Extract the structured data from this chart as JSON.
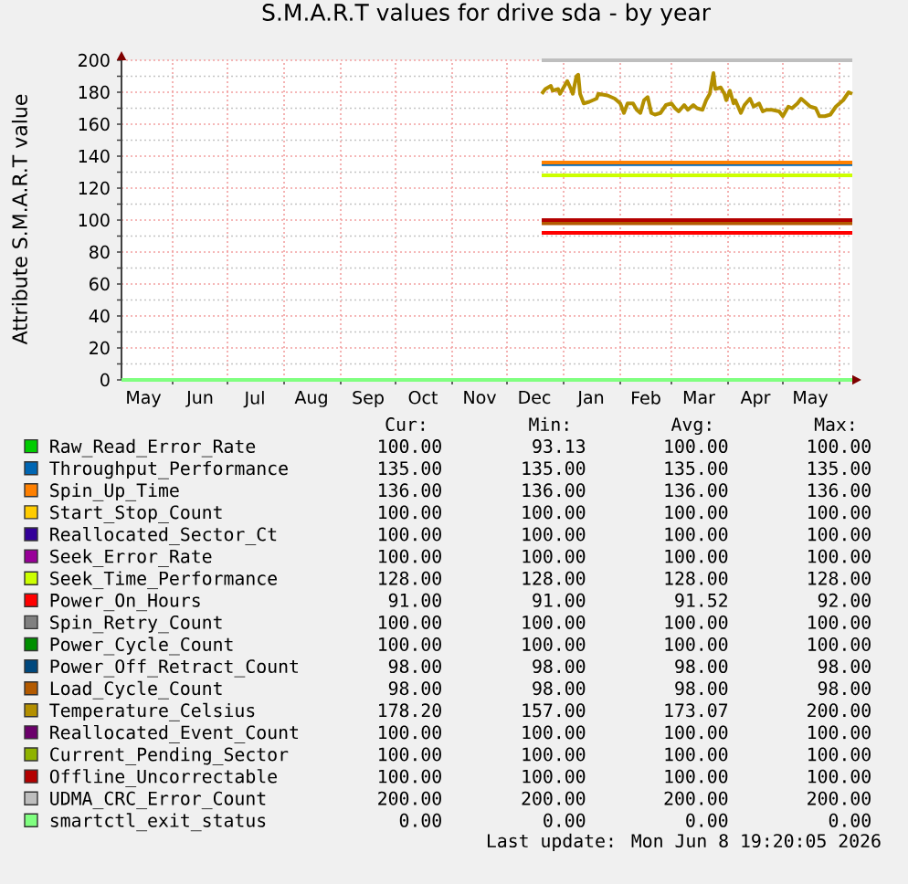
{
  "chart_data": {
    "type": "line",
    "title": "S.M.A.R.T values for drive sda - by year",
    "ylabel": "Attribute S.M.A.R.T value",
    "xlim": [
      "2025-05-04",
      "2026-06-08"
    ],
    "xticks": [
      {
        "value": "2025-05-16",
        "label": "May"
      },
      {
        "value": "2025-06-01",
        "label": null
      },
      {
        "value": "2025-06-16",
        "label": "Jun"
      },
      {
        "value": "2025-07-01",
        "label": null
      },
      {
        "value": "2025-07-16",
        "label": "Jul"
      },
      {
        "value": "2025-08-01",
        "label": null
      },
      {
        "value": "2025-08-16",
        "label": "Aug"
      },
      {
        "value": "2025-09-01",
        "label": null
      },
      {
        "value": "2025-09-16",
        "label": "Sep"
      },
      {
        "value": "2025-10-01",
        "label": null
      },
      {
        "value": "2025-10-16",
        "label": "Oct"
      },
      {
        "value": "2025-11-01",
        "label": null
      },
      {
        "value": "2025-11-16",
        "label": "Nov"
      },
      {
        "value": "2025-12-01",
        "label": null
      },
      {
        "value": "2025-12-16",
        "label": "Dec"
      },
      {
        "value": "2026-01-01",
        "label": null
      },
      {
        "value": "2026-01-16",
        "label": "Jan"
      },
      {
        "value": "2026-02-01",
        "label": null
      },
      {
        "value": "2026-02-15",
        "label": "Feb"
      },
      {
        "value": "2026-03-01",
        "label": null
      },
      {
        "value": "2026-03-16",
        "label": "Mar"
      },
      {
        "value": "2026-04-01",
        "label": null
      },
      {
        "value": "2026-04-16",
        "label": "Apr"
      },
      {
        "value": "2026-05-01",
        "label": null
      },
      {
        "value": "2026-05-16",
        "label": "May"
      },
      {
        "value": "2026-06-01",
        "label": null
      }
    ],
    "ylim": [
      0,
      200
    ],
    "yticks": [
      0,
      {
        "value": 10,
        "label": null
      },
      20,
      {
        "value": 30,
        "label": null
      },
      40,
      {
        "value": 50,
        "label": null
      },
      60,
      {
        "value": 70,
        "label": null
      },
      80,
      {
        "value": 90,
        "label": null
      },
      100,
      {
        "value": 110,
        "label": null
      },
      120,
      {
        "value": 130,
        "label": null
      },
      140,
      {
        "value": 150,
        "label": null
      },
      160,
      {
        "value": 170,
        "label": null
      },
      180,
      {
        "value": 190,
        "label": null
      },
      200
    ],
    "grid": true,
    "legend": "bottom",
    "series": [
      {
        "name": "Raw_Read_Error_Rate",
        "color": "#00CC00",
        "values": [
          null
        ]
      },
      {
        "name": "Throughput_Performance",
        "color": "#0066B3",
        "x": [
          "2025-12-20",
          "2026-06-08"
        ],
        "values": [
          135,
          135
        ]
      },
      {
        "name": "Spin_Up_Time",
        "color": "#FF8000",
        "x": [
          "2025-12-20",
          "2026-06-08"
        ],
        "values": [
          136,
          136
        ]
      },
      {
        "name": "Start_Stop_Count",
        "color": "#FFCC00",
        "values": [
          null
        ]
      },
      {
        "name": "Reallocated_Sector_Ct",
        "color": "#330099",
        "values": [
          null
        ]
      },
      {
        "name": "Seek_Error_Rate",
        "color": "#990099",
        "values": [
          null
        ]
      },
      {
        "name": "Seek_Time_Performance",
        "color": "#CCFF00",
        "x": [
          "2025-12-20",
          "2026-06-08"
        ],
        "values": [
          128,
          128
        ]
      },
      {
        "name": "Power_On_Hours",
        "color": "#FF0000",
        "x": [
          "2025-12-20",
          "2026-06-08"
        ],
        "values": [
          92,
          92
        ]
      },
      {
        "name": "Spin_Retry_Count",
        "color": "#808080",
        "values": [
          null
        ]
      },
      {
        "name": "Power_Cycle_Count",
        "color": "#008F00",
        "values": [
          null
        ]
      },
      {
        "name": "Power_Off_Retract_Count",
        "color": "#00487D",
        "values": [
          null
        ]
      },
      {
        "name": "Load_Cycle_Count",
        "color": "#B35A00",
        "x": [
          "2025-12-20",
          "2026-06-08"
        ],
        "values": [
          98,
          98
        ]
      },
      {
        "name": "Temperature_Celsius",
        "color": "#B38F00",
        "x": [
          "2025-12-20",
          "2025-12-22",
          "2025-12-25",
          "2025-12-26",
          "2025-12-29",
          "2025-12-30",
          "2026-01-01",
          "2026-01-03",
          "2026-01-05",
          "2026-01-06",
          "2026-01-08",
          "2026-01-09",
          "2026-01-10",
          "2026-01-12",
          "2026-01-15",
          "2026-01-19",
          "2026-01-20",
          "2026-01-25",
          "2026-01-29",
          "2026-02-01",
          "2026-02-03",
          "2026-02-05",
          "2026-02-08",
          "2026-02-10",
          "2026-02-12",
          "2026-02-14",
          "2026-02-16",
          "2026-02-18",
          "2026-02-20",
          "2026-02-23",
          "2026-02-26",
          "2026-03-01",
          "2026-03-03",
          "2026-03-05",
          "2026-03-08",
          "2026-03-10",
          "2026-03-13",
          "2026-03-15",
          "2026-03-18",
          "2026-03-20",
          "2026-03-22",
          "2026-03-24",
          "2026-03-25",
          "2026-03-28",
          "2026-03-30",
          "2026-03-31",
          "2026-04-02",
          "2026-04-04",
          "2026-04-05",
          "2026-04-08",
          "2026-04-10",
          "2026-04-13",
          "2026-04-15",
          "2026-04-18",
          "2026-04-20",
          "2026-04-22",
          "2026-04-25",
          "2026-04-29",
          "2026-05-01",
          "2026-05-04",
          "2026-05-06",
          "2026-05-09",
          "2026-05-11",
          "2026-05-14",
          "2026-05-16",
          "2026-05-19",
          "2026-05-21",
          "2026-05-24",
          "2026-05-27",
          "2026-05-30",
          "2026-06-01",
          "2026-06-03",
          "2026-06-06",
          "2026-06-08"
        ],
        "values": [
          179,
          182,
          184,
          181,
          182,
          179,
          183,
          187,
          182,
          179,
          190,
          191,
          179,
          173,
          174,
          176,
          179,
          178,
          176,
          173,
          167,
          173,
          173,
          169,
          167,
          175,
          177,
          167,
          166,
          167,
          172,
          173,
          170,
          168,
          172,
          169,
          172,
          170,
          169,
          175,
          179,
          192,
          182,
          183,
          179,
          175,
          181,
          173,
          175,
          167,
          172,
          176,
          171,
          173,
          168,
          169,
          169,
          168,
          165,
          171,
          170,
          173,
          176,
          173,
          171,
          170,
          165,
          165,
          166,
          171,
          173,
          175,
          180,
          179
        ]
      },
      {
        "name": "Reallocated_Event_Count",
        "color": "#6B006B",
        "values": [
          null
        ]
      },
      {
        "name": "Current_Pending_Sector",
        "color": "#8FB300",
        "values": [
          null
        ]
      },
      {
        "name": "Offline_Uncorrectable",
        "color": "#B30000",
        "x": [
          "2025-12-20",
          "2026-06-08"
        ],
        "values": [
          100,
          100
        ]
      },
      {
        "name": "UDMA_CRC_Error_Count",
        "color": "#BEBEBE",
        "x": [
          "2025-12-20",
          "2026-06-08"
        ],
        "values": [
          200,
          200
        ]
      },
      {
        "name": "smartctl_exit_status",
        "color": "#80FF80",
        "x": [
          "2025-05-04",
          "2026-06-08"
        ],
        "values": [
          0,
          0
        ]
      }
    ],
    "annotations": [
      "Cur:",
      "Min:",
      "Avg:",
      "Max:",
      "100.00",
      "93.13",
      "100.00",
      "100.00",
      "135.00",
      "135.00",
      "135.00",
      "135.00",
      "136.00",
      "136.00",
      "136.00",
      "136.00",
      "100.00",
      "100.00",
      "100.00",
      "100.00",
      "100.00",
      "100.00",
      "100.00",
      "100.00",
      "100.00",
      "100.00",
      "100.00",
      "100.00",
      "128.00",
      "128.00",
      "128.00",
      "128.00",
      "91.00",
      "91.00",
      "91.52",
      "92.00",
      "100.00",
      "100.00",
      "100.00",
      "100.00",
      "100.00",
      "100.00",
      "100.00",
      "100.00",
      "98.00",
      "98.00",
      "98.00",
      "98.00",
      "98.00",
      "98.00",
      "98.00",
      "98.00",
      "178.20",
      "157.00",
      "173.07",
      "200.00",
      "100.00",
      "100.00",
      "100.00",
      "100.00",
      "100.00",
      "100.00",
      "100.00",
      "100.00",
      "100.00",
      "100.00",
      "100.00",
      "100.00",
      "200.00",
      "200.00",
      "200.00",
      "200.00",
      "0.00",
      "0.00",
      "0.00",
      "0.00",
      "Last update: Mon Jun 8 19:20:05 2026"
    ]
  }
}
